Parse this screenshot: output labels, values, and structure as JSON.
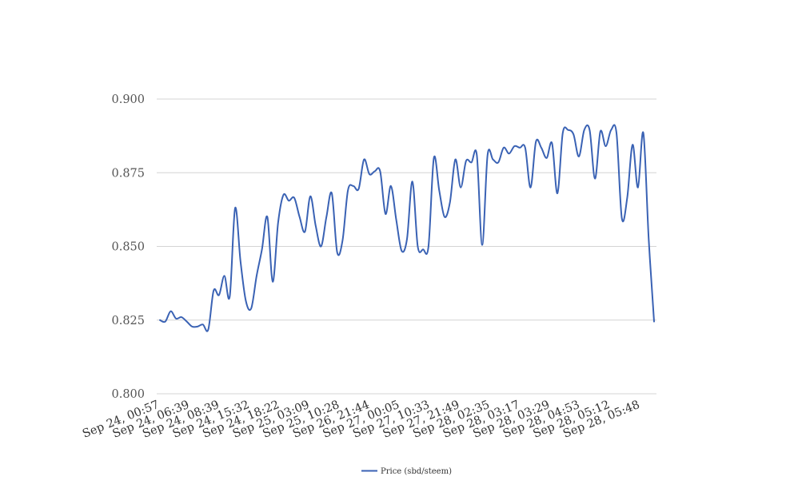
{
  "chart_data": {
    "type": "line",
    "title": "",
    "xlabel": "",
    "ylabel": "",
    "ylim": [
      0.8,
      0.9
    ],
    "y_ticks": [
      "0.800",
      "0.825",
      "0.850",
      "0.875",
      "0.900"
    ],
    "x_tick_labels": [
      "Sep 24, 00:57",
      "Sep 24, 06:39",
      "Sep 24, 08:39",
      "Sep 24, 15:32",
      "Sep 24, 18:22",
      "Sep 25, 03:09",
      "Sep 25, 10:28",
      "Sep 26, 21:44",
      "Sep 27, 00:05",
      "Sep 27, 10:33",
      "Sep 27, 21:49",
      "Sep 28, 02:35",
      "Sep 28, 03:17",
      "Sep 28, 03:29",
      "Sep 28, 04:53",
      "Sep 28, 05:12",
      "Sep 28, 05:48"
    ],
    "grid": true,
    "legend_position": "bottom",
    "series": [
      {
        "name": "Price (sbd/steem)",
        "color": "#3a62b4",
        "values": [
          0.825,
          0.8245,
          0.828,
          0.8255,
          0.826,
          0.8245,
          0.8228,
          0.8228,
          0.8235,
          0.8218,
          0.835,
          0.8335,
          0.84,
          0.833,
          0.863,
          0.845,
          0.8315,
          0.829,
          0.84,
          0.849,
          0.86,
          0.838,
          0.858,
          0.8675,
          0.8655,
          0.8665,
          0.86,
          0.855,
          0.867,
          0.857,
          0.85,
          0.86,
          0.868,
          0.848,
          0.852,
          0.869,
          0.8705,
          0.8695,
          0.8795,
          0.8745,
          0.8755,
          0.8755,
          0.861,
          0.8705,
          0.859,
          0.8485,
          0.8525,
          0.872,
          0.85,
          0.849,
          0.85,
          0.88,
          0.869,
          0.86,
          0.865,
          0.8795,
          0.87,
          0.879,
          0.8785,
          0.881,
          0.8505,
          0.881,
          0.8795,
          0.8785,
          0.8835,
          0.8815,
          0.884,
          0.8835,
          0.8835,
          0.87,
          0.8855,
          0.8835,
          0.88,
          0.885,
          0.868,
          0.8885,
          0.8895,
          0.888,
          0.8805,
          0.8895,
          0.8895,
          0.873,
          0.889,
          0.884,
          0.8895,
          0.8885,
          0.8595,
          0.8665,
          0.8845,
          0.87,
          0.8885,
          0.8525,
          0.8245
        ]
      }
    ]
  }
}
